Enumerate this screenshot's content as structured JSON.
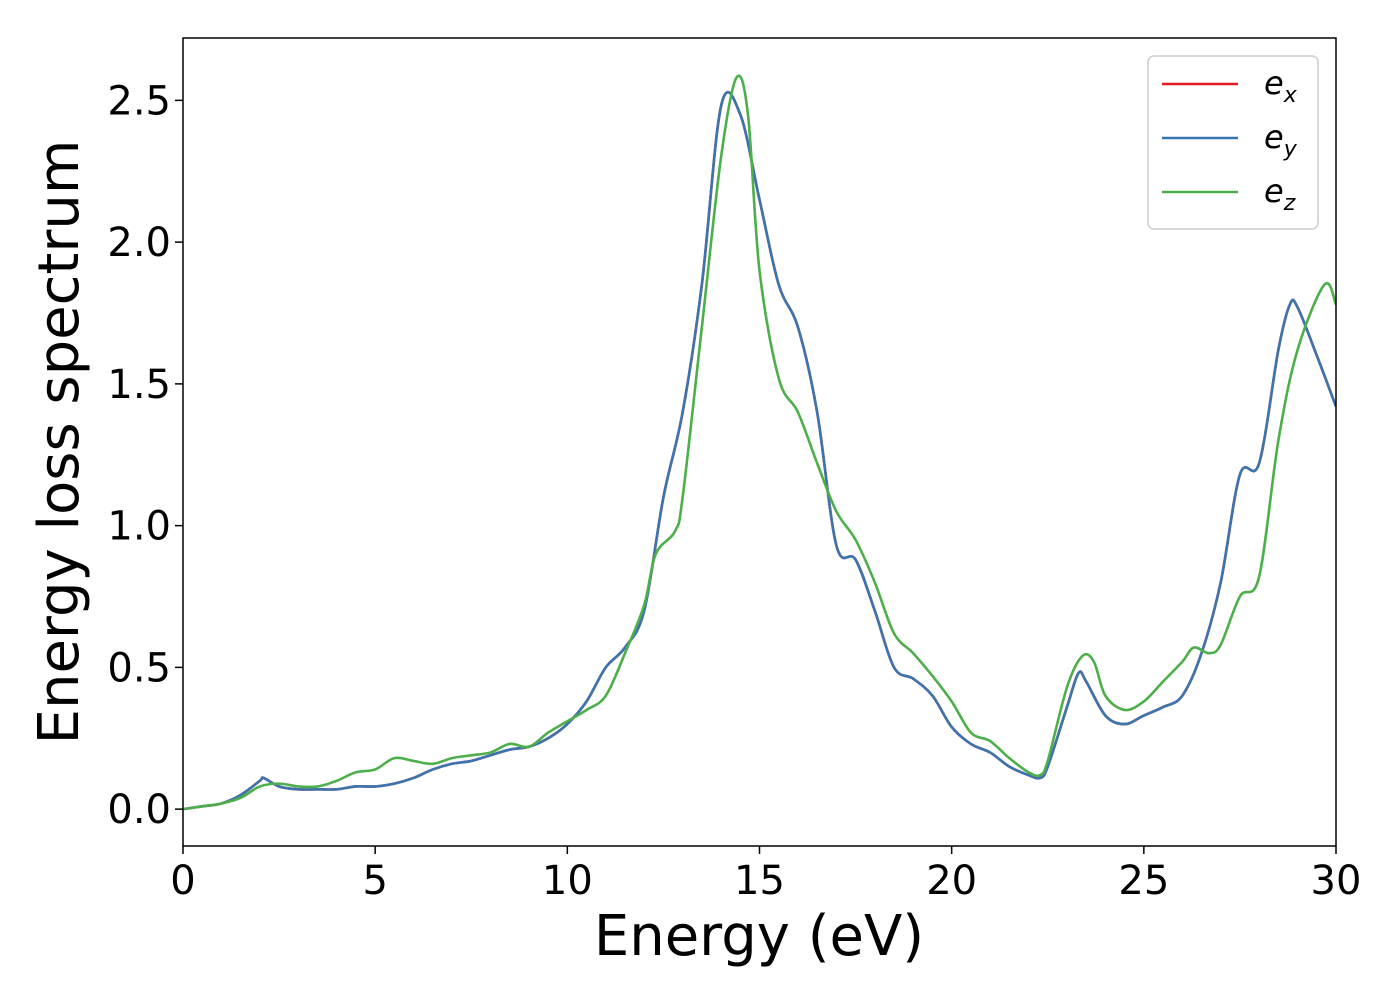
{
  "chart_data": {
    "type": "line",
    "xlabel": "Energy (eV)",
    "ylabel": "Energy loss spectrum",
    "xlim": [
      0,
      30
    ],
    "ylim": [
      -0.13,
      2.72
    ],
    "xticks": [
      0,
      5,
      10,
      15,
      20,
      25,
      30
    ],
    "xtick_labels": [
      "0",
      "5",
      "10",
      "15",
      "20",
      "25",
      "30"
    ],
    "yticks": [
      0.0,
      0.5,
      1.0,
      1.5,
      2.0,
      2.5
    ],
    "ytick_labels": [
      "0.0",
      "0.5",
      "1.0",
      "1.5",
      "2.0",
      "2.5"
    ],
    "grid": false,
    "legend_position": "top-right",
    "series": [
      {
        "name": "e_x",
        "label_main": "e",
        "label_sub": "x",
        "color": "#e41a1c",
        "x": [
          0,
          0.5,
          1,
          1.5,
          2,
          2.1,
          2.5,
          3,
          3.5,
          4,
          4.5,
          5,
          5.5,
          6,
          6.5,
          7,
          7.5,
          8,
          8.5,
          9,
          9.5,
          10,
          10.5,
          11,
          11.5,
          12,
          12.5,
          13,
          13.5,
          14,
          14.5,
          15,
          15.5,
          16,
          16.5,
          17,
          17.5,
          18,
          18.5,
          19,
          19.5,
          20,
          20.5,
          21,
          21.5,
          22,
          22.3,
          22.5,
          23,
          23.3,
          23.5,
          24,
          24.5,
          25,
          25.5,
          26,
          26.5,
          27,
          27.5,
          28,
          28.5,
          28.8,
          29,
          29.5,
          30
        ],
        "y": [
          0.0,
          0.01,
          0.02,
          0.05,
          0.1,
          0.11,
          0.08,
          0.07,
          0.07,
          0.07,
          0.08,
          0.08,
          0.09,
          0.11,
          0.14,
          0.16,
          0.17,
          0.19,
          0.21,
          0.22,
          0.25,
          0.3,
          0.38,
          0.5,
          0.57,
          0.7,
          1.1,
          1.4,
          1.85,
          2.48,
          2.45,
          2.15,
          1.85,
          1.7,
          1.4,
          0.93,
          0.88,
          0.7,
          0.5,
          0.46,
          0.4,
          0.29,
          0.23,
          0.2,
          0.15,
          0.12,
          0.11,
          0.15,
          0.36,
          0.48,
          0.45,
          0.33,
          0.3,
          0.33,
          0.36,
          0.4,
          0.55,
          0.8,
          1.18,
          1.22,
          1.62,
          1.78,
          1.77,
          1.6,
          1.42
        ]
      },
      {
        "name": "e_y",
        "label_main": "e",
        "label_sub": "y",
        "color": "#3a75b0",
        "x": [
          0,
          0.5,
          1,
          1.5,
          2,
          2.1,
          2.5,
          3,
          3.5,
          4,
          4.5,
          5,
          5.5,
          6,
          6.5,
          7,
          7.5,
          8,
          8.5,
          9,
          9.5,
          10,
          10.5,
          11,
          11.5,
          12,
          12.5,
          13,
          13.5,
          14,
          14.5,
          15,
          15.5,
          16,
          16.5,
          17,
          17.5,
          18,
          18.5,
          19,
          19.5,
          20,
          20.5,
          21,
          21.5,
          22,
          22.3,
          22.5,
          23,
          23.3,
          23.5,
          24,
          24.5,
          25,
          25.5,
          26,
          26.5,
          27,
          27.5,
          28,
          28.5,
          28.8,
          29,
          29.5,
          30
        ],
        "y": [
          0.0,
          0.01,
          0.02,
          0.05,
          0.1,
          0.11,
          0.08,
          0.07,
          0.07,
          0.07,
          0.08,
          0.08,
          0.09,
          0.11,
          0.14,
          0.16,
          0.17,
          0.19,
          0.21,
          0.22,
          0.25,
          0.3,
          0.38,
          0.5,
          0.57,
          0.7,
          1.1,
          1.4,
          1.85,
          2.48,
          2.45,
          2.15,
          1.85,
          1.7,
          1.4,
          0.93,
          0.88,
          0.7,
          0.5,
          0.46,
          0.4,
          0.29,
          0.23,
          0.2,
          0.15,
          0.12,
          0.11,
          0.15,
          0.36,
          0.48,
          0.45,
          0.33,
          0.3,
          0.33,
          0.36,
          0.4,
          0.55,
          0.8,
          1.18,
          1.22,
          1.62,
          1.78,
          1.77,
          1.6,
          1.42
        ]
      },
      {
        "name": "e_z",
        "label_main": "e",
        "label_sub": "z",
        "color": "#4daf4a",
        "x": [
          0,
          0.5,
          1,
          1.5,
          2,
          2.5,
          3,
          3.5,
          4,
          4.5,
          5,
          5.5,
          6,
          6.5,
          7,
          7.5,
          8,
          8.5,
          9,
          9.5,
          10,
          10.5,
          11,
          11.5,
          12,
          12.3,
          12.8,
          13,
          13.5,
          14,
          14.4,
          14.7,
          15,
          15.5,
          16,
          16.5,
          17,
          17.5,
          18,
          18.5,
          19,
          19.5,
          20,
          20.5,
          21,
          21.5,
          22,
          22.3,
          22.5,
          23,
          23.4,
          23.7,
          24,
          24.5,
          25,
          25.5,
          26,
          26.3,
          26.7,
          27,
          27.5,
          28,
          28.5,
          29,
          29.7,
          30
        ],
        "y": [
          0.0,
          0.01,
          0.02,
          0.04,
          0.08,
          0.09,
          0.08,
          0.08,
          0.1,
          0.13,
          0.14,
          0.18,
          0.17,
          0.16,
          0.18,
          0.19,
          0.2,
          0.23,
          0.22,
          0.27,
          0.31,
          0.35,
          0.4,
          0.55,
          0.72,
          0.9,
          0.98,
          1.1,
          1.7,
          2.3,
          2.58,
          2.45,
          1.9,
          1.52,
          1.4,
          1.22,
          1.05,
          0.95,
          0.8,
          0.62,
          0.55,
          0.47,
          0.38,
          0.27,
          0.24,
          0.18,
          0.13,
          0.12,
          0.17,
          0.43,
          0.54,
          0.52,
          0.4,
          0.35,
          0.38,
          0.45,
          0.52,
          0.57,
          0.55,
          0.58,
          0.75,
          0.82,
          1.3,
          1.62,
          1.85,
          1.78
        ]
      }
    ]
  }
}
